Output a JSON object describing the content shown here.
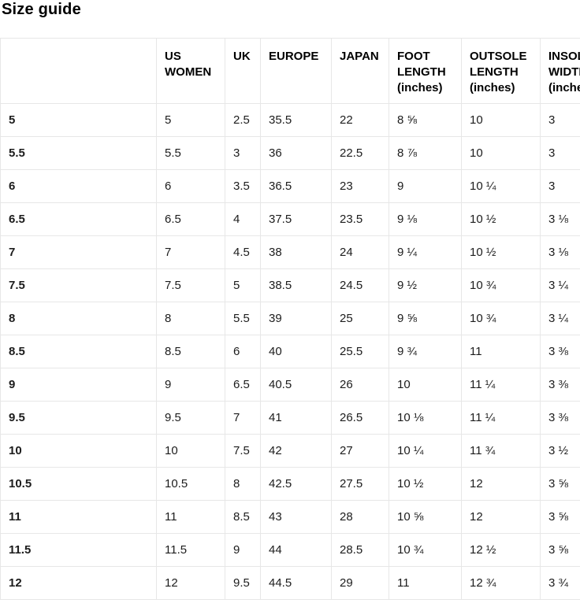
{
  "page": {
    "title": "Size guide"
  },
  "colors": {
    "border": "#e7e7e7",
    "text": "#1c1c1c",
    "heading": "#000000",
    "background": "#ffffff"
  },
  "table": {
    "columns": [
      "",
      "US WOMEN",
      "UK",
      "EUROPE",
      "JAPAN",
      "FOOT LENGTH (inches)",
      "OUTSOLE LENGTH (inches)",
      "INSOLE WIDTH (inches)"
    ],
    "rows": [
      [
        "5",
        "5",
        "2.5",
        "35.5",
        "22",
        "8 ⅝",
        "10",
        "3"
      ],
      [
        "5.5",
        "5.5",
        "3",
        "36",
        "22.5",
        "8 ⅞",
        "10",
        "3"
      ],
      [
        "6",
        "6",
        "3.5",
        "36.5",
        "23",
        "9",
        "10 ¼",
        "3"
      ],
      [
        "6.5",
        "6.5",
        "4",
        "37.5",
        "23.5",
        "9 ⅛",
        "10 ½",
        "3 ⅛"
      ],
      [
        "7",
        "7",
        "4.5",
        "38",
        "24",
        "9 ¼",
        "10 ½",
        "3 ⅛"
      ],
      [
        "7.5",
        "7.5",
        "5",
        "38.5",
        "24.5",
        "9 ½",
        "10 ¾",
        "3 ¼"
      ],
      [
        "8",
        "8",
        "5.5",
        "39",
        "25",
        "9 ⅝",
        "10 ¾",
        "3 ¼"
      ],
      [
        "8.5",
        "8.5",
        "6",
        "40",
        "25.5",
        "9 ¾",
        "11",
        "3 ⅜"
      ],
      [
        "9",
        "9",
        "6.5",
        "40.5",
        "26",
        "10",
        "11 ¼",
        "3 ⅜"
      ],
      [
        "9.5",
        "9.5",
        "7",
        "41",
        "26.5",
        "10 ⅛",
        "11 ¼",
        "3 ⅜"
      ],
      [
        "10",
        "10",
        "7.5",
        "42",
        "27",
        "10 ¼",
        "11 ¾",
        "3 ½"
      ],
      [
        "10.5",
        "10.5",
        "8",
        "42.5",
        "27.5",
        "10 ½",
        "12",
        "3 ⅝"
      ],
      [
        "11",
        "11",
        "8.5",
        "43",
        "28",
        "10 ⅝",
        "12",
        "3 ⅝"
      ],
      [
        "11.5",
        "11.5",
        "9",
        "44",
        "28.5",
        "10 ¾",
        "12 ½",
        "3 ⅝"
      ],
      [
        "12",
        "12",
        "9.5",
        "44.5",
        "29",
        "11",
        "12 ¾",
        "3 ¾"
      ]
    ]
  }
}
